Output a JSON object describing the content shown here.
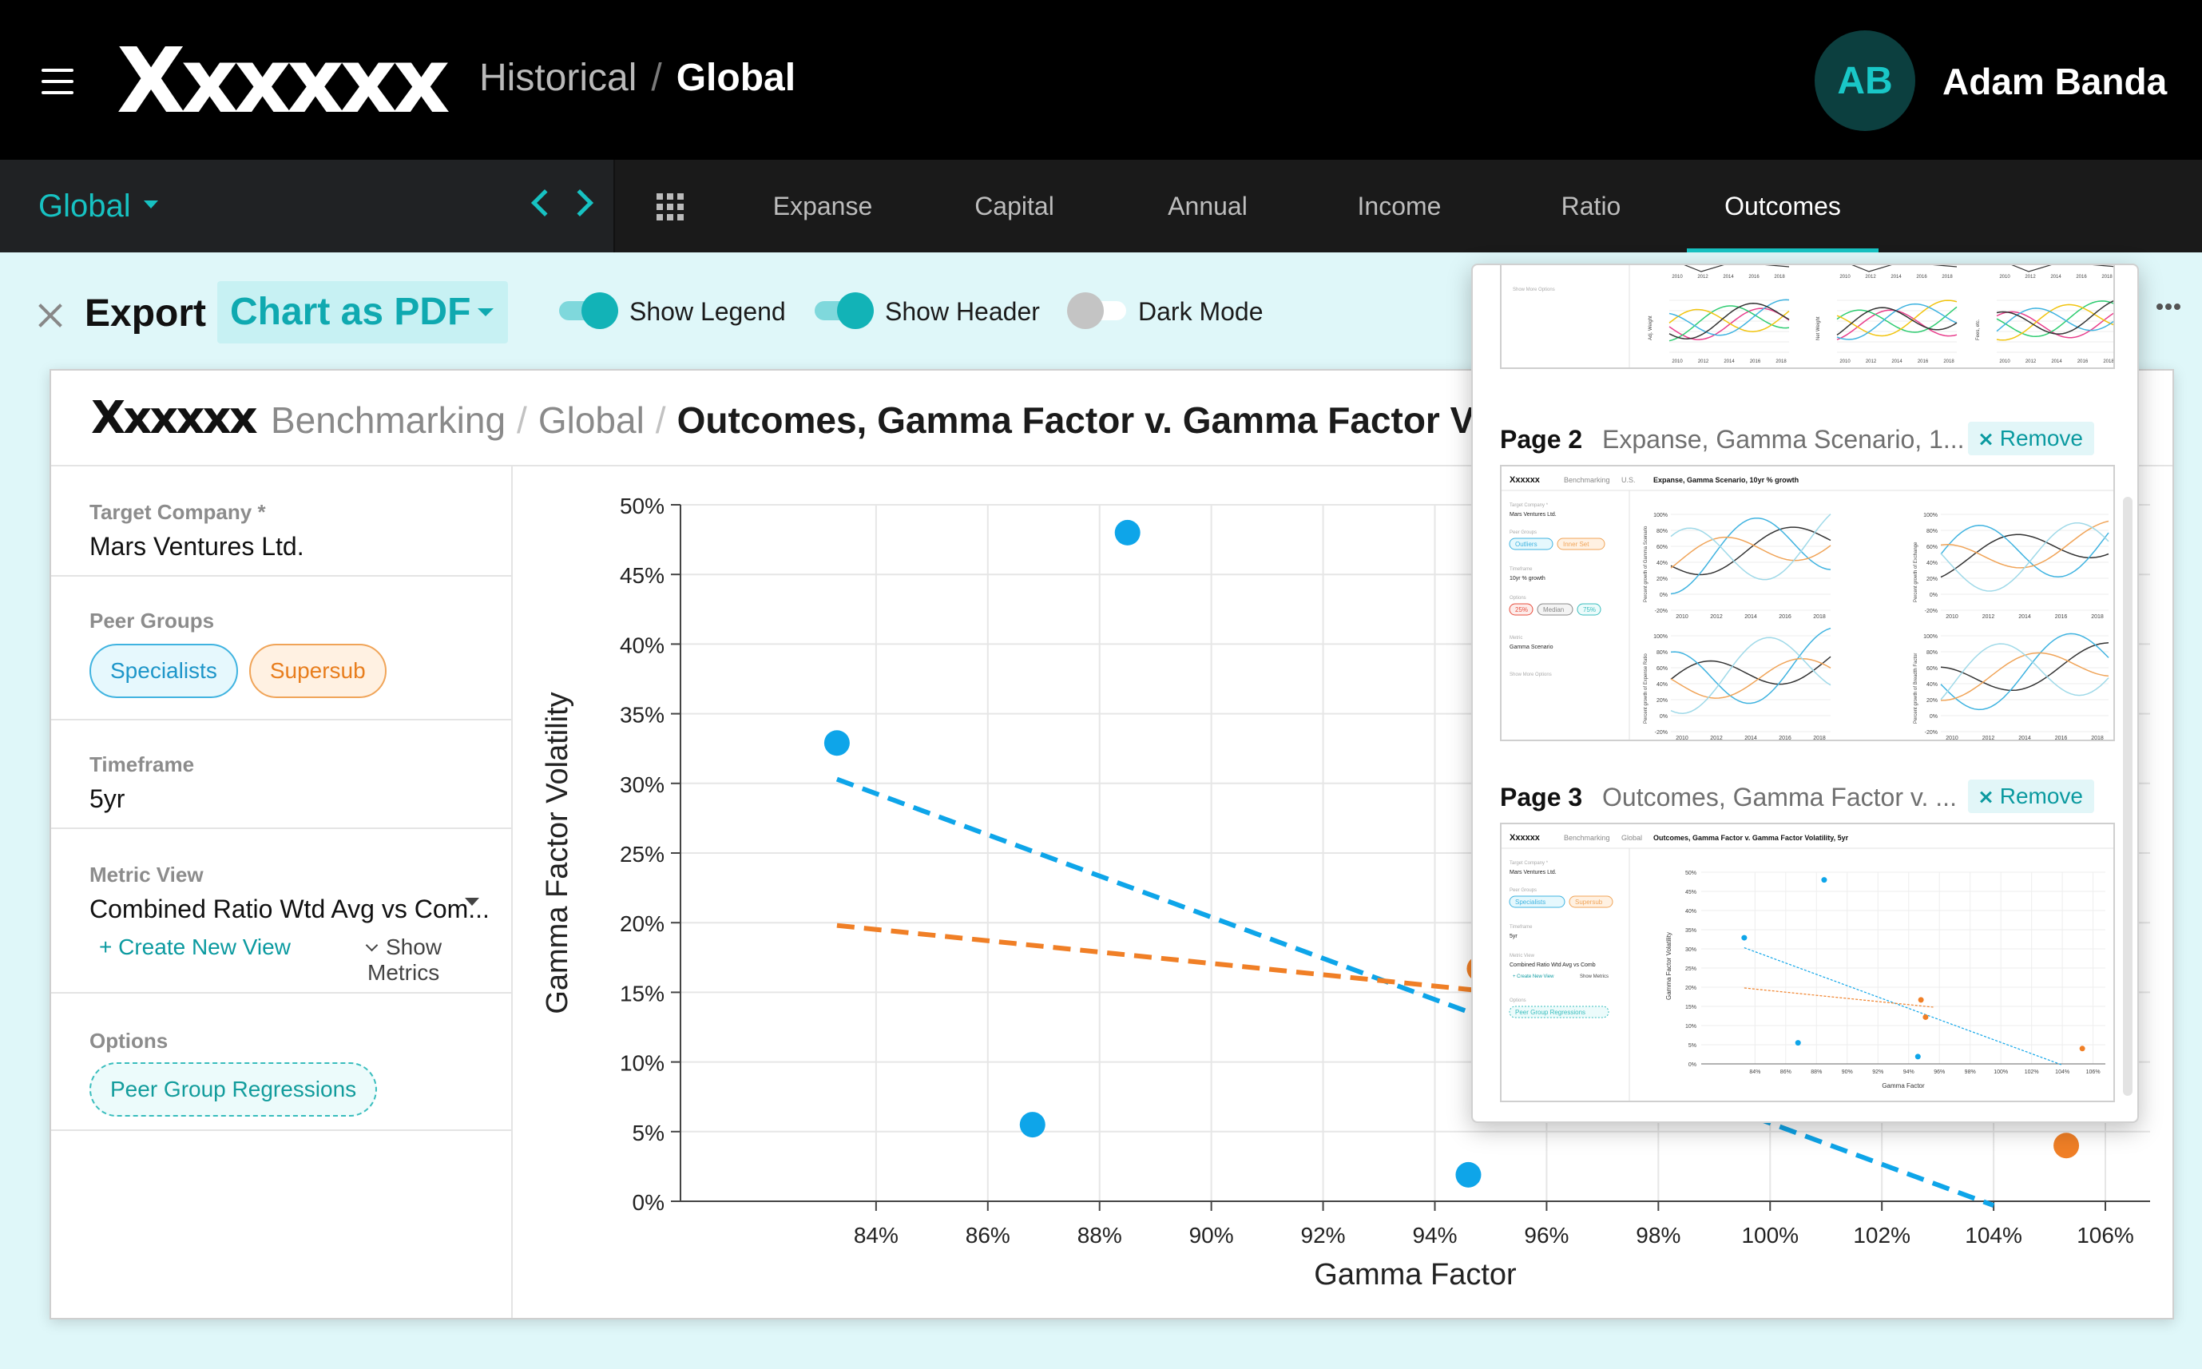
{
  "app": {
    "logo": "Xxxxxx",
    "breadcrumb": {
      "parent": "Historical",
      "separator": "/",
      "current": "Global"
    },
    "user": {
      "initials": "AB",
      "name": "Adam Banda"
    }
  },
  "nav": {
    "scope": "Global",
    "tabs": [
      {
        "label": "Expanse",
        "active": false
      },
      {
        "label": "Capital",
        "active": false
      },
      {
        "label": "Annual",
        "active": false
      },
      {
        "label": "Income",
        "active": false
      },
      {
        "label": "Ratio",
        "active": false
      },
      {
        "label": "Outcomes",
        "active": true
      }
    ]
  },
  "export_bar": {
    "label": "Export",
    "format": "Chart as PDF",
    "toggles": [
      {
        "label": "Show Legend",
        "on": true
      },
      {
        "label": "Show Header",
        "on": true
      },
      {
        "label": "Dark Mode",
        "on": false
      }
    ]
  },
  "card": {
    "logo": "Xxxxxx",
    "breadcrumb": [
      "Benchmarking",
      "Global",
      "Outcomes, Gamma Factor v. Gamma Factor Vo"
    ],
    "separator": "/",
    "sidebar": {
      "target_company": {
        "label": "Target Company *",
        "value": "Mars Ventures Ltd."
      },
      "peer_groups": {
        "label": "Peer Groups",
        "items": [
          "Specialists",
          "Supersub"
        ]
      },
      "timeframe": {
        "label": "Timeframe",
        "value": "5yr"
      },
      "metric_view": {
        "label": "Metric View",
        "value": "Combined Ratio Wtd Avg vs Com...",
        "create_label": "+ Create New View",
        "show_metrics_label": "Show Metrics"
      },
      "options": {
        "label": "Options",
        "items": [
          "Peer Group Regressions"
        ]
      }
    }
  },
  "chart_data": {
    "type": "scatter",
    "xlabel": "Gamma Factor",
    "ylabel": "Gamma Factor Volatility",
    "xlim": [
      80.5,
      106.8
    ],
    "ylim": [
      0,
      50
    ],
    "x_ticks": [
      "84%",
      "86%",
      "88%",
      "90%",
      "92%",
      "94%",
      "96%",
      "98%",
      "100%",
      "102%",
      "104%",
      "106%"
    ],
    "y_ticks": [
      "0%",
      "5%",
      "10%",
      "15%",
      "20%",
      "25%",
      "30%",
      "35%",
      "40%",
      "45%",
      "50%"
    ],
    "grid": true,
    "series": [
      {
        "color": "#0ea5e9",
        "points": [
          [
            83.3,
            32.9
          ],
          [
            88.5,
            48.0
          ],
          [
            86.8,
            5.5
          ],
          [
            94.6,
            1.9
          ]
        ],
        "trend": [
          [
            83.3,
            30.3
          ],
          [
            104.0,
            -0.3
          ]
        ]
      },
      {
        "color": "#f07f26",
        "points": [
          [
            94.8,
            16.7
          ],
          [
            95.1,
            12.2
          ],
          [
            105.3,
            4.0
          ]
        ],
        "trend": [
          [
            83.3,
            19.8
          ],
          [
            95.6,
            14.8
          ]
        ]
      }
    ]
  },
  "export_pages": {
    "remove_label": "Remove",
    "pages": [
      {
        "number": "Page 2",
        "title": "Expanse, Gamma Scenario, 1...",
        "thumb_title": "Expanse, Gamma Scenario, 10yr % growth",
        "thumb_scope": "U.S."
      },
      {
        "number": "Page 3",
        "title": "Outcomes, Gamma Factor v. ...",
        "thumb_title": "Outcomes, Gamma Factor v. Gamma Factor Volatility, 5yr",
        "thumb_scope": "Global"
      }
    ],
    "thumb": {
      "logo": "Xxxxxx",
      "section": "Benchmarking",
      "company_label": "Target Company *",
      "company": "Mars Ventures Ltd.",
      "peer_label": "Peer Groups",
      "timeframe_label": "Timeframe",
      "timeframe_p2": "10yr % growth",
      "timeframe_p3": "5yr",
      "options_label": "Options",
      "metric_label": "Metric",
      "metric_view_label": "Metric View",
      "metric_p2": "Gamma Scenario",
      "metric_p3": "Combined Ratio Wtd Avg vs Comb",
      "more_options": "Show More Options",
      "create_view": "+ Create New View",
      "show_metrics": "Show Metrics",
      "peer_p2": [
        "Outliers",
        "Inner Set"
      ],
      "options_p2": [
        "25%",
        "Median",
        "75%"
      ],
      "peer_p3": [
        "Specialists",
        "Supersub"
      ],
      "options_p3": [
        "Peer Group Regressions"
      ],
      "xlabel_p3": "Gamma Factor",
      "ylabel_p3": "Gamma Factor Volatility",
      "years": [
        "2010",
        "2012",
        "2014",
        "2016",
        "2018"
      ],
      "p2_ylabels": [
        "Percent growth of Gamma Scenario",
        "Percent growth of Exchange",
        "Percent growth of Expense Ratio",
        "Percent growth of Breadth Factor"
      ],
      "p2_yticks": [
        "100%",
        "80%",
        "60%",
        "40%",
        "20%",
        "0%",
        "-20%"
      ],
      "p3_yticks": [
        "50%",
        "45%",
        "40%",
        "35%",
        "30%",
        "25%",
        "20%",
        "15%",
        "10%",
        "5%",
        "0%"
      ],
      "p3_xticks": [
        "84%",
        "86%",
        "88%",
        "90%",
        "92%",
        "94%",
        "96%",
        "98%",
        "100%",
        "102%",
        "104%",
        "106%"
      ],
      "p1_ylabels": [
        "Adj. Weight",
        "Net Weight",
        "Fees, etc."
      ]
    }
  }
}
